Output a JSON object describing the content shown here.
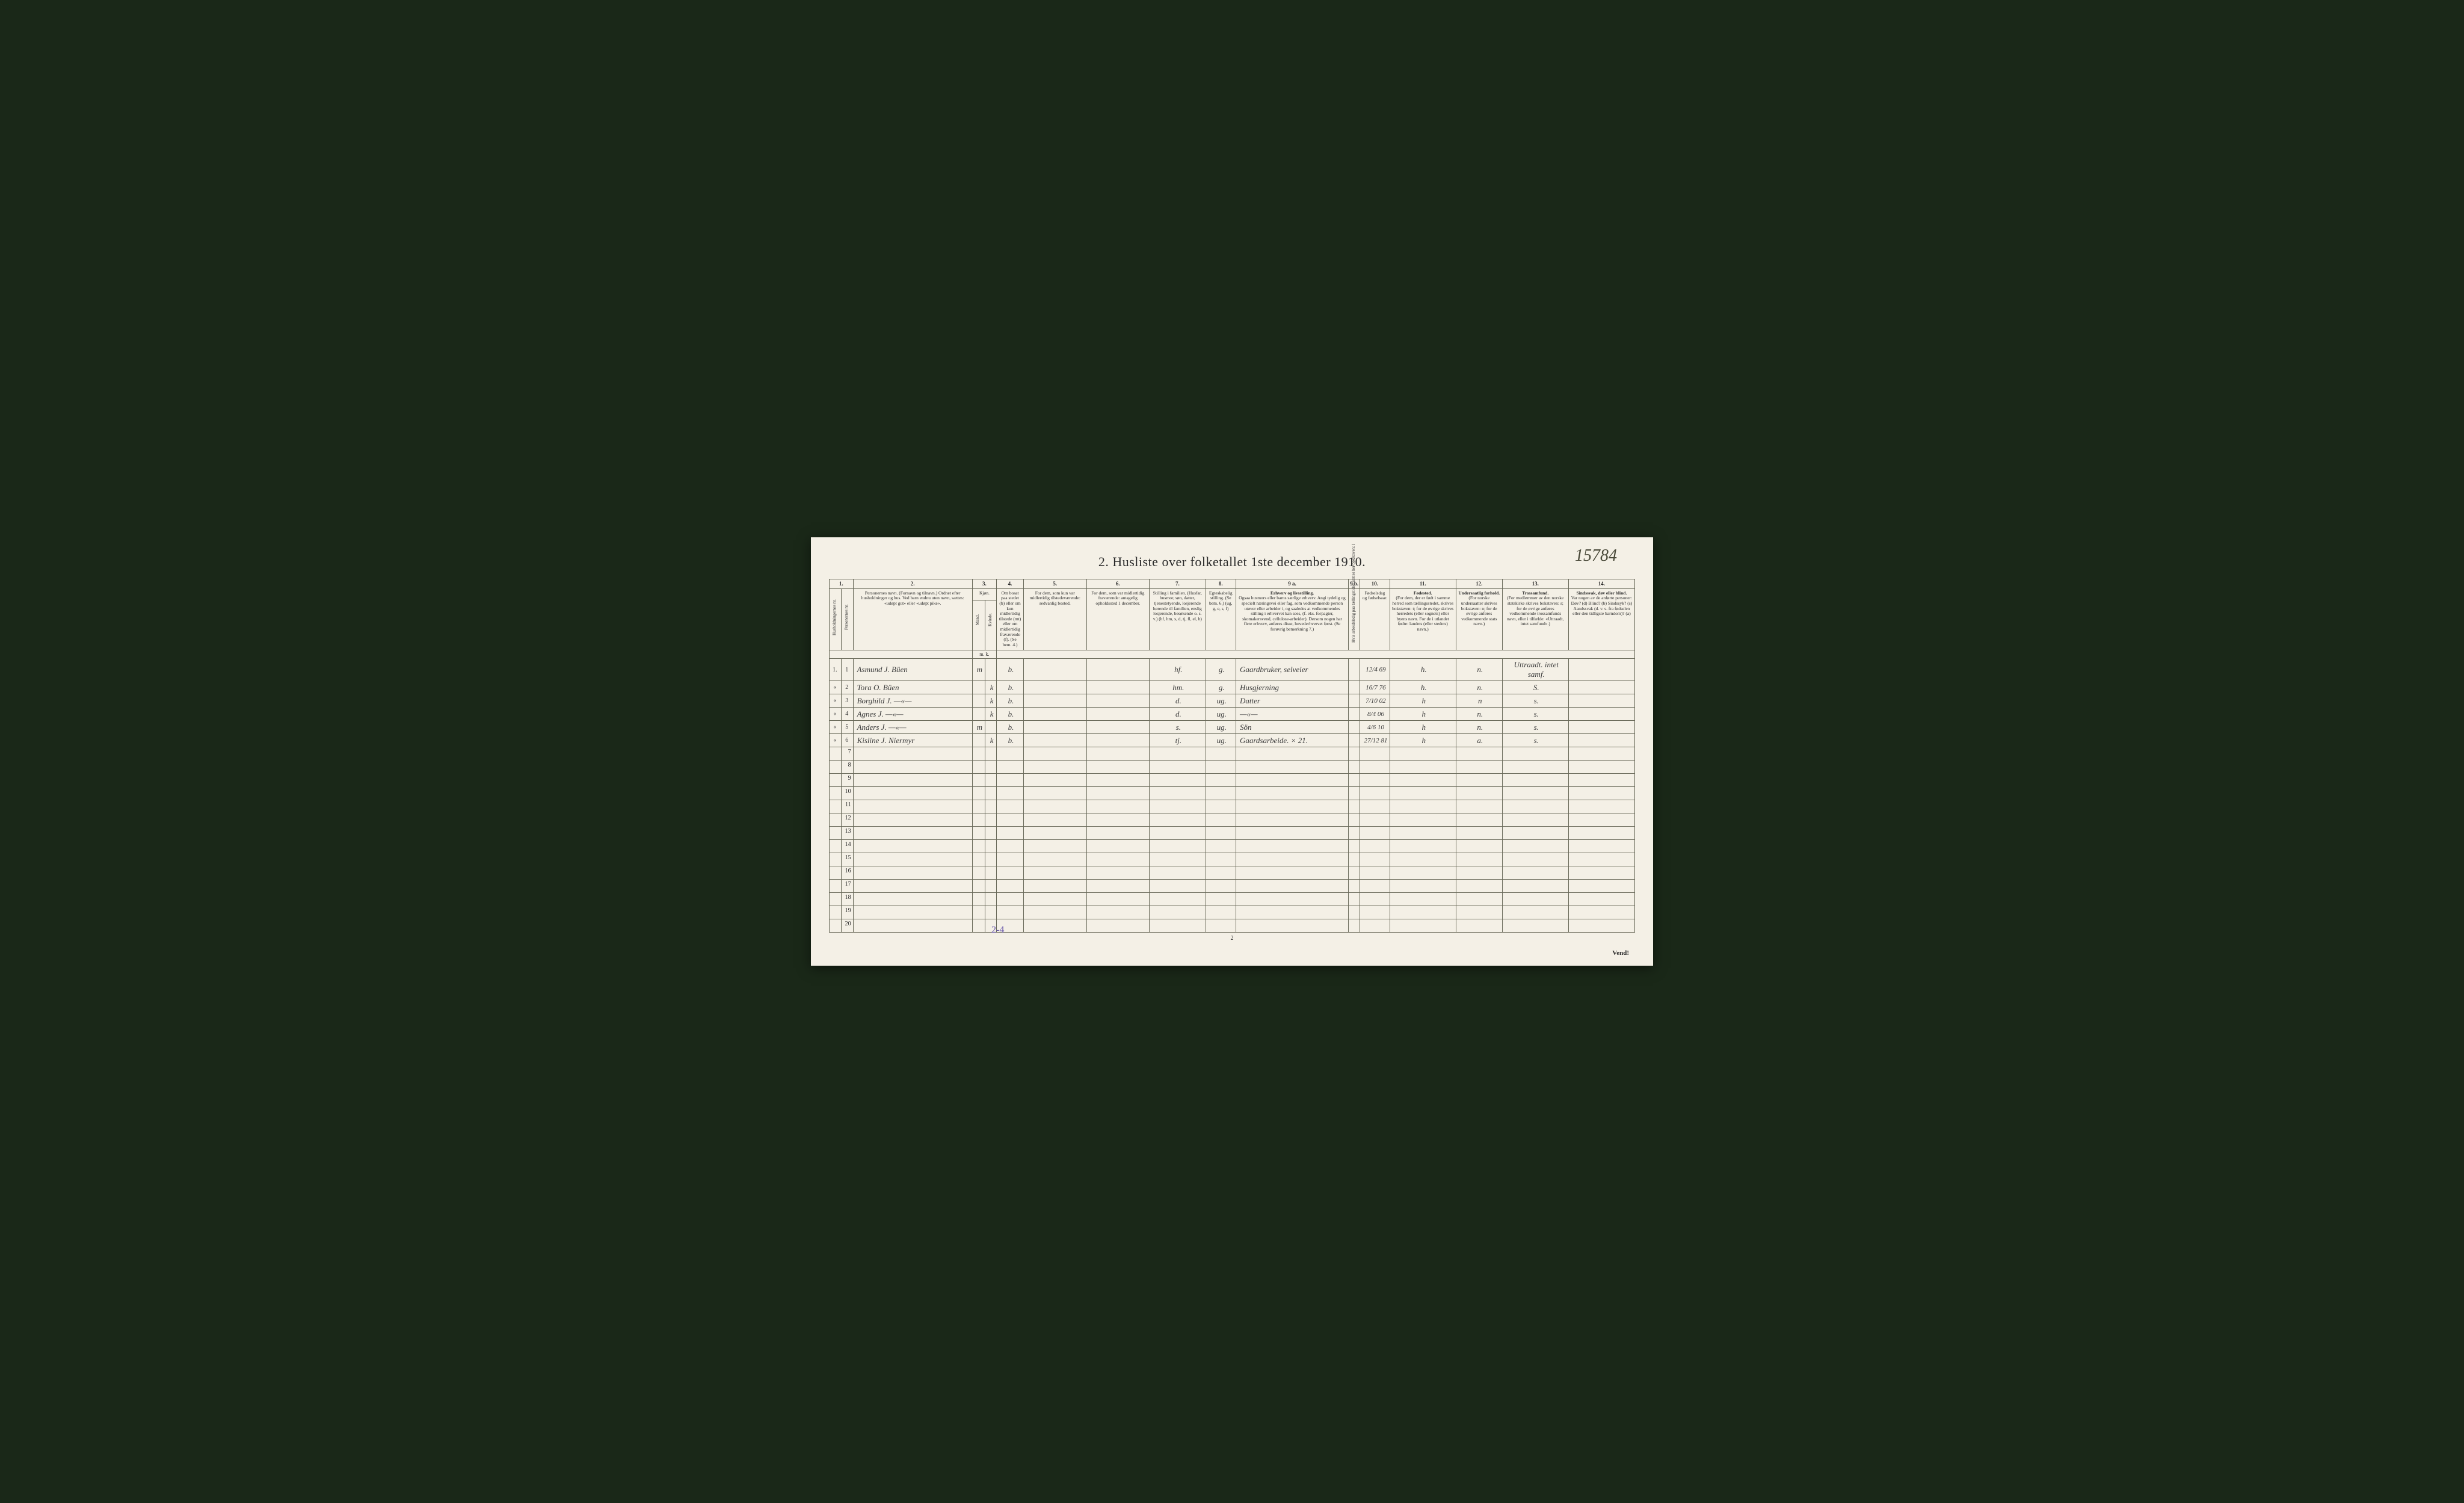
{
  "page_number_handwritten": "15784",
  "title": "2.  Husliste over folketallet 1ste december 1910.",
  "column_numbers": [
    "1.",
    "2.",
    "3.",
    "4.",
    "5.",
    "6.",
    "7.",
    "8.",
    "9 a.",
    "9 b.",
    "10.",
    "11.",
    "12.",
    "13.",
    "14."
  ],
  "headers": {
    "col1a": "Husholdningernes nr.",
    "col1b": "Personernes nr.",
    "col2": "Personernes navn.\n(Fornavn og tilnavn.)\nOrdnet efter husholdninger og hus.\nVed barn endnu uten navn, sættes: «udøpt gut» eller «udøpt pike».",
    "col3_top": "Kjøn.",
    "col3_m": "Mand.",
    "col3_k": "Kvinde.",
    "col3_mk": "m.  k.",
    "col4": "Om bosat paa stedet (b) eller om kun midlertidig tilstede (mt) eller om midlertidig fraværende (f). (Se bem. 4.)",
    "col5": "For dem, som kun var midlertidig tilstedeværende:\nsedvanlig bosted.",
    "col6": "For dem, som var midlertidig fraværende:\nantagelig opholdssted 1 december.",
    "col7": "Stilling i familien.\n(Husfar, husmor, søn, datter, tjenestetyende, losjerende hørende til familien, enslig losjerende, besøkende o. s. v.)\n(hf, hm, s, d, tj, fl, el, b)",
    "col8": "Egteskabelig stilling.\n(Se bem. 6.)\n(ug, g, e, s, f)",
    "col9a_title": "Erhverv og livsstilling.",
    "col9a": "Ogsaa husmors eller barns særlige erhverv. Angi tydelig og specielt næringsvei eller fag, som vedkommende person utøver eller arbeider i, og saaledes at vedkommendes stilling i erhvervet kan sees, (f. eks. forpagter, skomakersvend, cellulose-arbeider). Dersom nogen har flere erhverv, anføres disse, hovederhvervet først.\n(Se forøvrig bemerkning 7.)",
    "col9b": "Hvis arbeidsledig paa tællingstiden sættes her bokstaven: l",
    "col10": "Fødselsdag og fødselsaar.",
    "col11_title": "Fødested.",
    "col11": "(For dem, der er født i samme herred som tællingsstedet, skrives bokstaven: t; for de øvrige skrives herredets (eller sognets) eller byens navn. For de i utlandet fødte: landets (eller stedets) navn.)",
    "col12_title": "Undersaatlig forhold.",
    "col12": "(For norske undersaatter skrives bokstaven: n; for de øvrige anføres vedkommende stats navn.)",
    "col13_title": "Trossamfund.",
    "col13": "(For medlemmer av den norske statskirke skrives bokstaven: s; for de øvrige anføres vedkommende trossamfunds navn, eller i tilfælde: «Uttraadt, intet samfund».)",
    "col14_title": "Sindssvak, døv eller blind.",
    "col14": "Var nogen av de anførte personer:\nDøv?        (d)\nBlind?       (b)\nSindssyk? (s)\nAandssvak (d. v. s. fra fødselen eller den tidligste barndom)? (a)"
  },
  "rows": [
    {
      "hh": "1.",
      "pn": "1",
      "name": "Asmund J. Büen",
      "sex": "m",
      "res": "b.",
      "col5": "",
      "col6": "",
      "pos": "hf.",
      "mar": "g.",
      "occ": "Gaardbruker, selveier",
      "l": "",
      "birth": "12/4 69",
      "bp": "h.",
      "nat": "n.",
      "rel": "Uttraadt. intet samf.",
      "dis": ""
    },
    {
      "hh": "«",
      "pn": "2",
      "name": "Tora O. Büen",
      "sex": "k",
      "res": "b.",
      "col5": "",
      "col6": "",
      "pos": "hm.",
      "mar": "g.",
      "occ": "Husgjerning",
      "l": "",
      "birth": "16/7 76",
      "bp": "h.",
      "nat": "n.",
      "rel": "S.",
      "dis": ""
    },
    {
      "hh": "«",
      "pn": "3",
      "name": "Borghild J.  —«—",
      "sex": "k",
      "res": "b.",
      "col5": "",
      "col6": "",
      "pos": "d.",
      "mar": "ug.",
      "occ": "Datter",
      "l": "",
      "birth": "7/10 02",
      "bp": "h",
      "nat": "n",
      "rel": "s.",
      "dis": ""
    },
    {
      "hh": "«",
      "pn": "4",
      "name": "Agnes J.  —«—",
      "sex": "k",
      "res": "b.",
      "col5": "",
      "col6": "",
      "pos": "d.",
      "mar": "ug.",
      "occ": "—«—",
      "l": "",
      "birth": "8/4 06",
      "bp": "h",
      "nat": "n.",
      "rel": "s.",
      "dis": ""
    },
    {
      "hh": "«",
      "pn": "5",
      "name": "Anders J.  —«—",
      "sex": "m",
      "res": "b.",
      "col5": "",
      "col6": "",
      "pos": "s.",
      "mar": "ug.",
      "occ": "Sön",
      "l": "",
      "birth": "4/6 10",
      "bp": "h",
      "nat": "n.",
      "rel": "s.",
      "dis": ""
    },
    {
      "hh": "«",
      "pn": "6",
      "name": "Kisline J. Niermyr",
      "sex": "k",
      "res": "b.",
      "col5": "",
      "col6": "",
      "pos": "tj.",
      "mar": "ug.",
      "occ": "Gaardsarbeide. × 21.",
      "l": "",
      "birth": "27/12 81",
      "bp": "h",
      "nat": "a.",
      "rel": "s.",
      "dis": ""
    }
  ],
  "empty_rows": [
    7,
    8,
    9,
    10,
    11,
    12,
    13,
    14,
    15,
    16,
    17,
    18,
    19,
    20
  ],
  "footer_annotation": "2-4",
  "footer_page": "2",
  "footer_vend": "Vend!",
  "colors": {
    "page_bg": "#f4f0e6",
    "outer_bg": "#1a2818",
    "border": "#6a6a5a",
    "text": "#2a2a2a",
    "handwriting": "#3a3a3a",
    "annotation": "#6a5aaa"
  },
  "typography": {
    "title_fontsize": 22,
    "header_fontsize": 8,
    "data_fontsize": 13,
    "title_family": "Georgia",
    "data_family": "cursive"
  }
}
